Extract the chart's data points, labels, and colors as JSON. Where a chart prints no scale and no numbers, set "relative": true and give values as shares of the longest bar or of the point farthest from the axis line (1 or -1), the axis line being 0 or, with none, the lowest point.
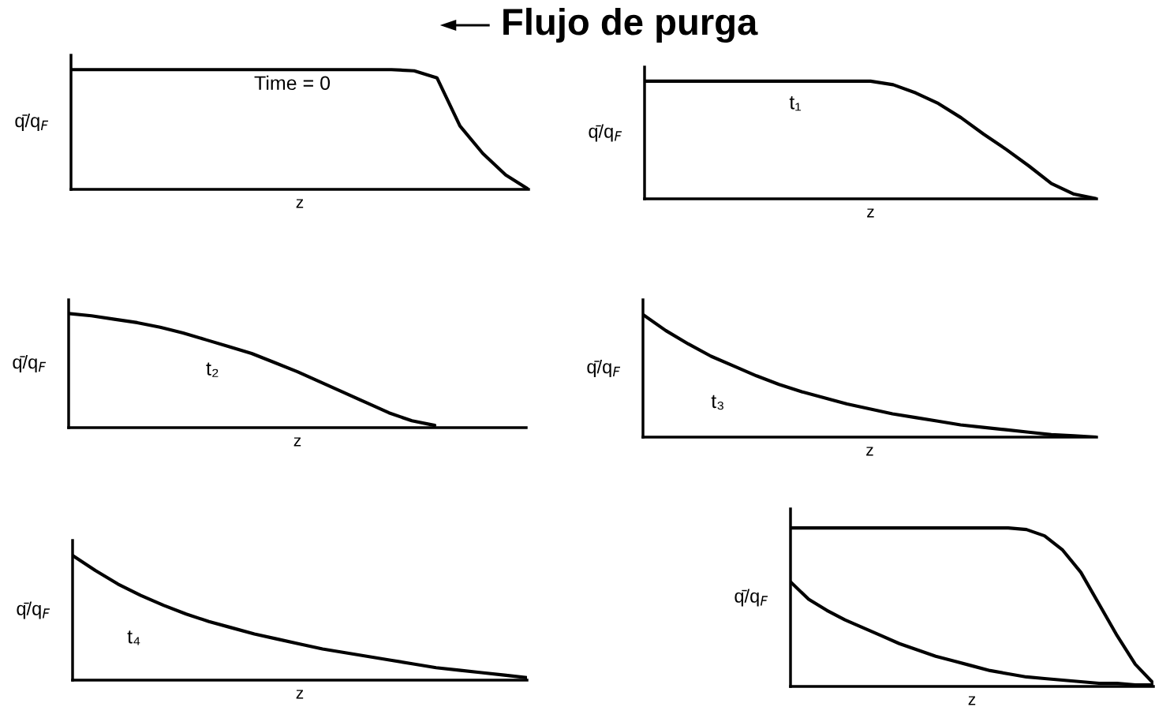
{
  "chart_data": [
    {
      "type": "line",
      "title": "Flujo de purga",
      "ylabel": "q̄/q$_{F}$",
      "xlabel": "z",
      "relative": true,
      "annotations": [
        "Time = 0"
      ],
      "categories": [
        null,
        null,
        null,
        null,
        null,
        null,
        null,
        null,
        null,
        null,
        null,
        null,
        null,
        null,
        null,
        null,
        null,
        null,
        null,
        null,
        null
      ],
      "series": [
        {
          "color": "#000000",
          "values": [
            1.0,
            1.0,
            1.0,
            1.0,
            1.0,
            1.0,
            1.0,
            1.0,
            1.0,
            1.0,
            1.0,
            1.0,
            1.0,
            1.0,
            1.0,
            0.99,
            0.93,
            0.53,
            0.3,
            0.12,
            0.0
          ]
        }
      ]
    },
    {
      "type": "line",
      "ylabel": "q̄/q$_{F}$",
      "xlabel": "z",
      "relative": true,
      "annotations": [
        "t₁"
      ],
      "categories": [
        null,
        null,
        null,
        null,
        null,
        null,
        null,
        null,
        null,
        null,
        null,
        null,
        null,
        null,
        null,
        null,
        null,
        null,
        null,
        null,
        null
      ],
      "series": [
        {
          "color": "#000000",
          "values": [
            1.0,
            1.0,
            1.0,
            1.0,
            1.0,
            1.0,
            1.0,
            1.0,
            1.0,
            1.0,
            1.0,
            0.97,
            0.9,
            0.81,
            0.69,
            0.55,
            0.42,
            0.28,
            0.13,
            0.04,
            0.0
          ]
        }
      ]
    },
    {
      "type": "line",
      "ylabel": "q̄/q$_{F}$",
      "xlabel": "z",
      "relative": true,
      "annotations": [
        "t₂"
      ],
      "categories": [
        null,
        null,
        null,
        null,
        null,
        null,
        null,
        null,
        null,
        null,
        null,
        null,
        null,
        null,
        null,
        null,
        null,
        null,
        null,
        null,
        null
      ],
      "series": [
        {
          "color": "#000000",
          "values": [
            1.0,
            0.98,
            0.95,
            0.92,
            0.88,
            0.83,
            0.77,
            0.71,
            0.65,
            0.57,
            0.49,
            0.4,
            0.31,
            0.22,
            0.13,
            0.06,
            0.02,
            null,
            null,
            null,
            null
          ]
        }
      ]
    },
    {
      "type": "line",
      "ylabel": "q̄/q$_{F}$",
      "xlabel": "z",
      "relative": true,
      "annotations": [
        "t₃"
      ],
      "categories": [
        null,
        null,
        null,
        null,
        null,
        null,
        null,
        null,
        null,
        null,
        null,
        null,
        null,
        null,
        null,
        null,
        null,
        null,
        null,
        null,
        null
      ],
      "series": [
        {
          "color": "#000000",
          "values": [
            1.0,
            0.87,
            0.76,
            0.66,
            0.58,
            0.5,
            0.43,
            0.37,
            0.32,
            0.27,
            0.23,
            0.19,
            0.16,
            0.13,
            0.1,
            0.08,
            0.06,
            0.04,
            0.02,
            0.01,
            0.0
          ]
        }
      ]
    },
    {
      "type": "line",
      "ylabel": "q̄/q$_{F}$",
      "xlabel": "z",
      "relative": true,
      "annotations": [
        "t₄"
      ],
      "categories": [
        null,
        null,
        null,
        null,
        null,
        null,
        null,
        null,
        null,
        null,
        null,
        null,
        null,
        null,
        null,
        null,
        null,
        null,
        null,
        null,
        null
      ],
      "series": [
        {
          "color": "#000000",
          "values": [
            1.0,
            0.88,
            0.77,
            0.68,
            0.6,
            0.53,
            0.47,
            0.42,
            0.37,
            0.33,
            0.29,
            0.25,
            0.22,
            0.19,
            0.16,
            0.13,
            0.1,
            0.08,
            0.06,
            0.04,
            0.02
          ]
        }
      ]
    },
    {
      "type": "line",
      "ylabel": "q̄/q$_{F}$",
      "xlabel": "z",
      "relative": true,
      "categories": [
        null,
        null,
        null,
        null,
        null,
        null,
        null,
        null,
        null,
        null,
        null,
        null,
        null,
        null,
        null,
        null,
        null,
        null,
        null,
        null,
        null
      ],
      "series": [
        {
          "color": "#000000",
          "values": [
            1.0,
            1.0,
            1.0,
            1.0,
            1.0,
            1.0,
            1.0,
            1.0,
            1.0,
            1.0,
            1.0,
            1.0,
            1.0,
            0.99,
            0.95,
            0.86,
            0.72,
            0.52,
            0.32,
            0.14,
            0.02
          ]
        },
        {
          "color": "#000000",
          "values": [
            0.66,
            0.55,
            0.48,
            0.42,
            0.37,
            0.32,
            0.27,
            0.23,
            0.19,
            0.16,
            0.13,
            0.1,
            0.08,
            0.06,
            0.05,
            0.04,
            0.03,
            0.02,
            0.02,
            0.01,
            0.01
          ]
        }
      ]
    }
  ]
}
